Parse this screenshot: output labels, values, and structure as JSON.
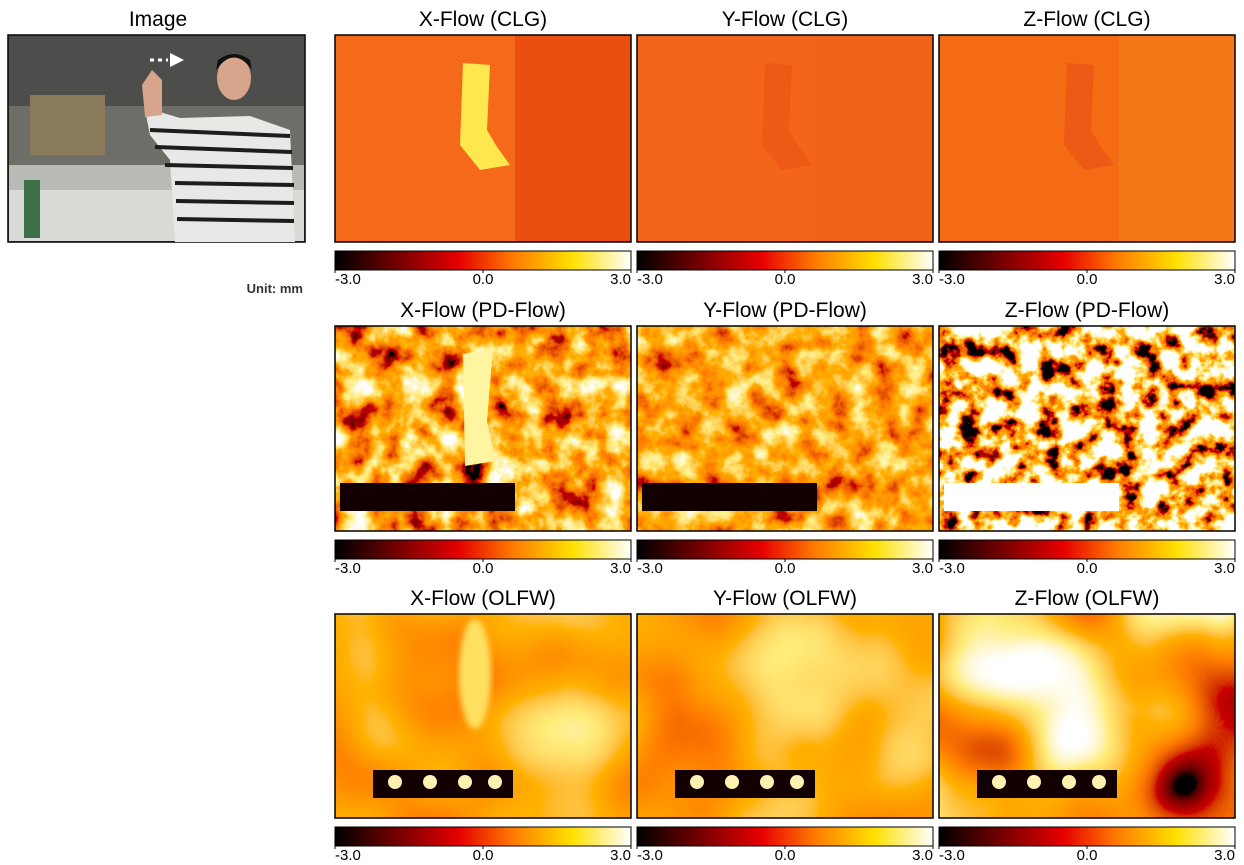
{
  "image_label": "Image",
  "unit_label": "Unit: mm",
  "panels": [
    {
      "title": "X-Flow (CLG)",
      "colorbar": {
        "lim": [
          -3,
          3
        ],
        "ticks": [
          {
            "value": -3,
            "label": "-3.0"
          },
          {
            "value": 0,
            "label": "0.0"
          },
          {
            "value": 3,
            "label": "3.0"
          }
        ]
      }
    },
    {
      "title": "Y-Flow (CLG)",
      "colorbar": {
        "lim": [
          -3,
          3
        ],
        "ticks": [
          {
            "value": -3,
            "label": "-3.0"
          },
          {
            "value": 0,
            "label": "0.0"
          },
          {
            "value": 3,
            "label": "3.0"
          }
        ]
      }
    },
    {
      "title": "Z-Flow (CLG)",
      "colorbar": {
        "lim": [
          -3,
          3
        ],
        "ticks": [
          {
            "value": -3,
            "label": "-3.0"
          },
          {
            "value": 0,
            "label": "0.0"
          },
          {
            "value": 3,
            "label": "3.0"
          }
        ]
      }
    },
    {
      "title": "X-Flow (PD-Flow)",
      "colorbar": {
        "lim": [
          -3,
          3
        ],
        "ticks": [
          {
            "value": -3,
            "label": "-3.0"
          },
          {
            "value": 0,
            "label": "0.0"
          },
          {
            "value": 3,
            "label": "3.0"
          }
        ]
      }
    },
    {
      "title": "Y-Flow (PD-Flow)",
      "colorbar": {
        "lim": [
          -3,
          3
        ],
        "ticks": [
          {
            "value": -3,
            "label": "-3.0"
          },
          {
            "value": 0,
            "label": "0.0"
          },
          {
            "value": 3,
            "label": "3.0"
          }
        ]
      }
    },
    {
      "title": "Z-Flow (PD-Flow)",
      "colorbar": {
        "lim": [
          -3,
          3
        ],
        "ticks": [
          {
            "value": -3,
            "label": "-3.0"
          },
          {
            "value": 0,
            "label": "0.0"
          },
          {
            "value": 3,
            "label": "3.0"
          }
        ]
      }
    },
    {
      "title": "X-Flow (OLFW)",
      "colorbar": {
        "lim": [
          -3,
          3
        ],
        "ticks": [
          {
            "value": -3,
            "label": "-3.0"
          },
          {
            "value": 0,
            "label": "0.0"
          },
          {
            "value": 3,
            "label": "3.0"
          }
        ]
      }
    },
    {
      "title": "Y-Flow (OLFW)",
      "colorbar": {
        "lim": [
          -3,
          3
        ],
        "ticks": [
          {
            "value": -3,
            "label": "-3.0"
          },
          {
            "value": 0,
            "label": "0.0"
          },
          {
            "value": 3,
            "label": "3.0"
          }
        ]
      }
    },
    {
      "title": "Z-Flow (OLFW)",
      "colorbar": {
        "lim": [
          -3,
          3
        ],
        "ticks": [
          {
            "value": -3,
            "label": "-3.0"
          },
          {
            "value": 0,
            "label": "0.0"
          },
          {
            "value": 3,
            "label": "3.0"
          }
        ]
      }
    }
  ]
}
